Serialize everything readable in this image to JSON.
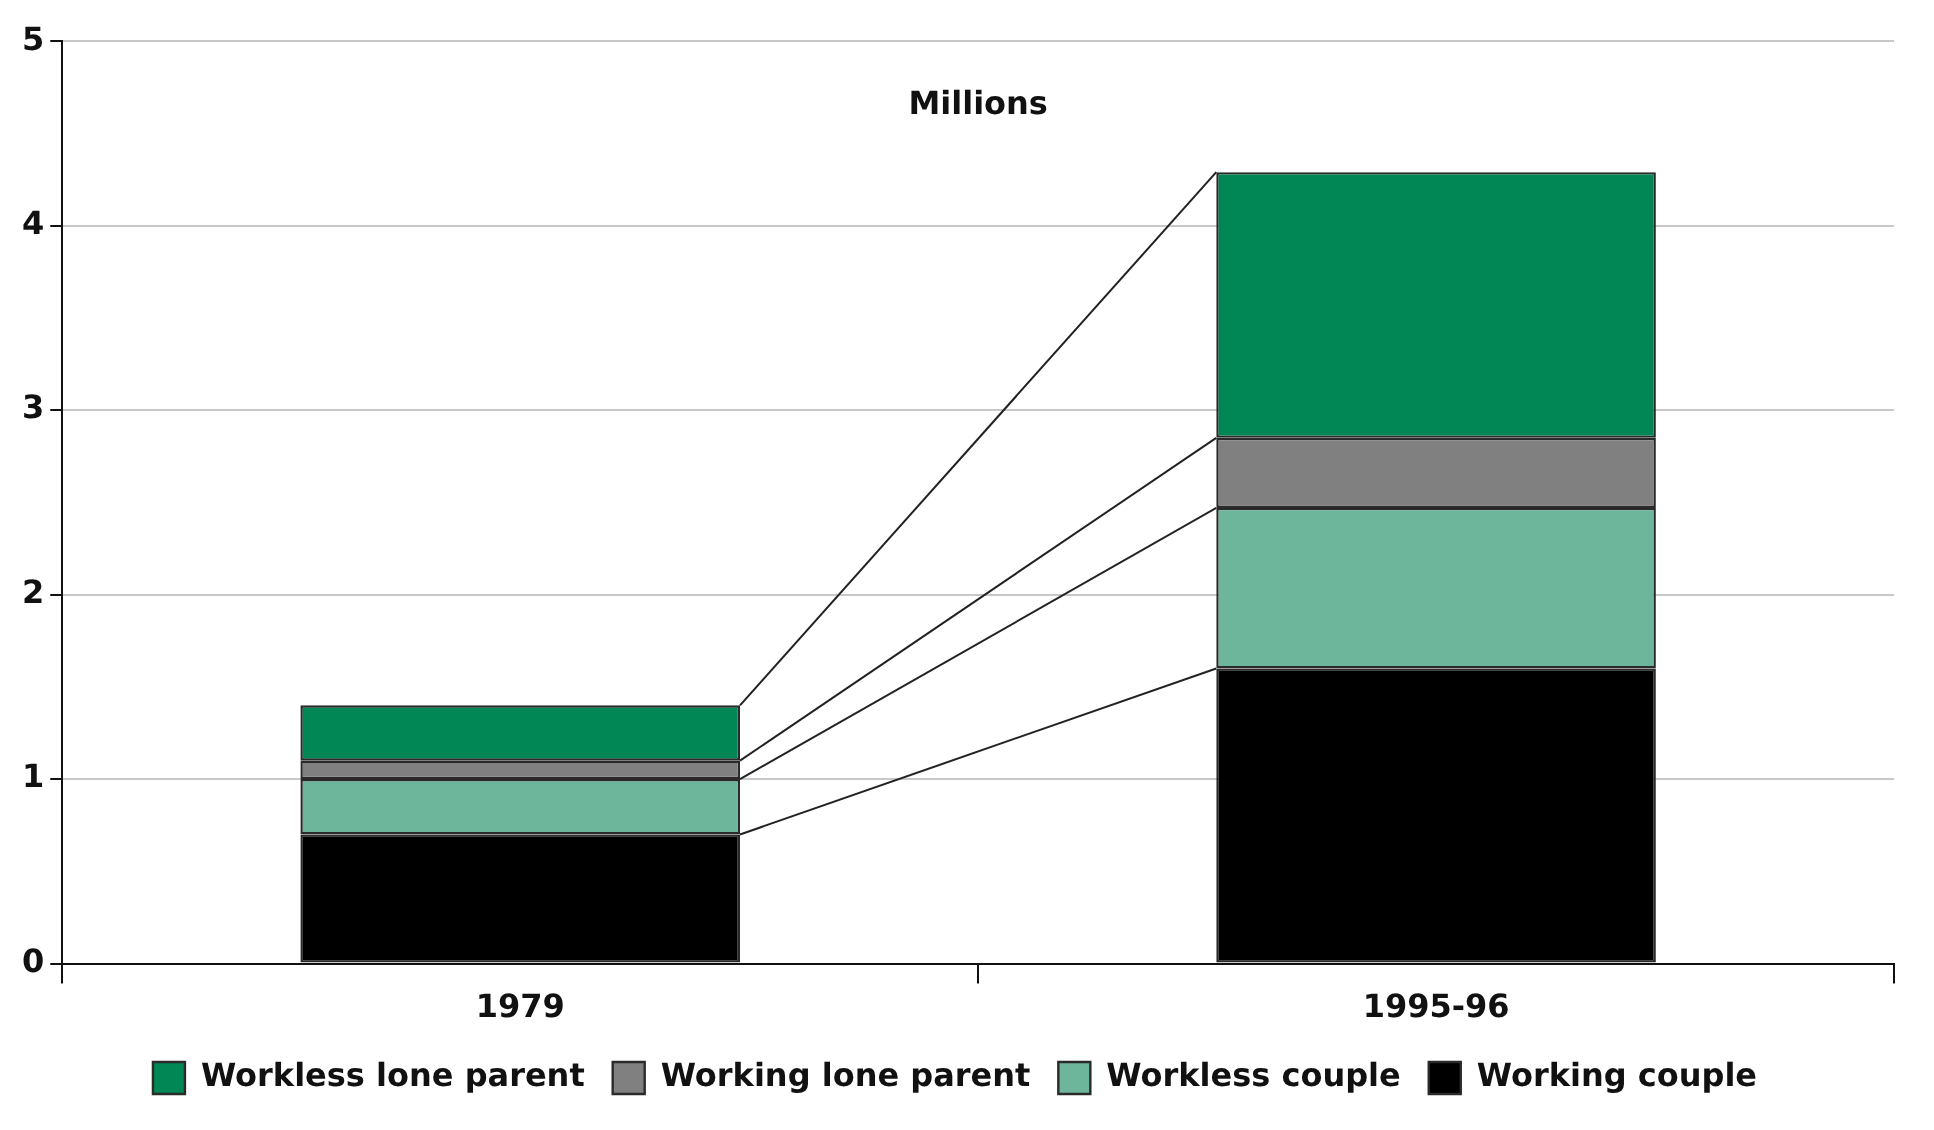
{
  "chart_data": {
    "type": "bar",
    "ylabel": "Millions",
    "categories": [
      "1979",
      "1995-96"
    ],
    "stacked": true,
    "series": [
      {
        "name": "Working couple",
        "color": "#000000",
        "values": [
          0.7,
          1.6
        ]
      },
      {
        "name": "Workless couple",
        "color": "#6db59b",
        "values": [
          0.3,
          0.87
        ]
      },
      {
        "name": "Working lone parent",
        "color": "#808080",
        "values": [
          0.1,
          0.38
        ]
      },
      {
        "name": "Workless lone parent",
        "color": "#008755",
        "values": [
          0.3,
          1.44
        ]
      }
    ],
    "ylim": [
      0,
      5
    ],
    "yticks": [
      0,
      1,
      2,
      3,
      4,
      5
    ],
    "grid": "y",
    "legend": "bottom"
  }
}
